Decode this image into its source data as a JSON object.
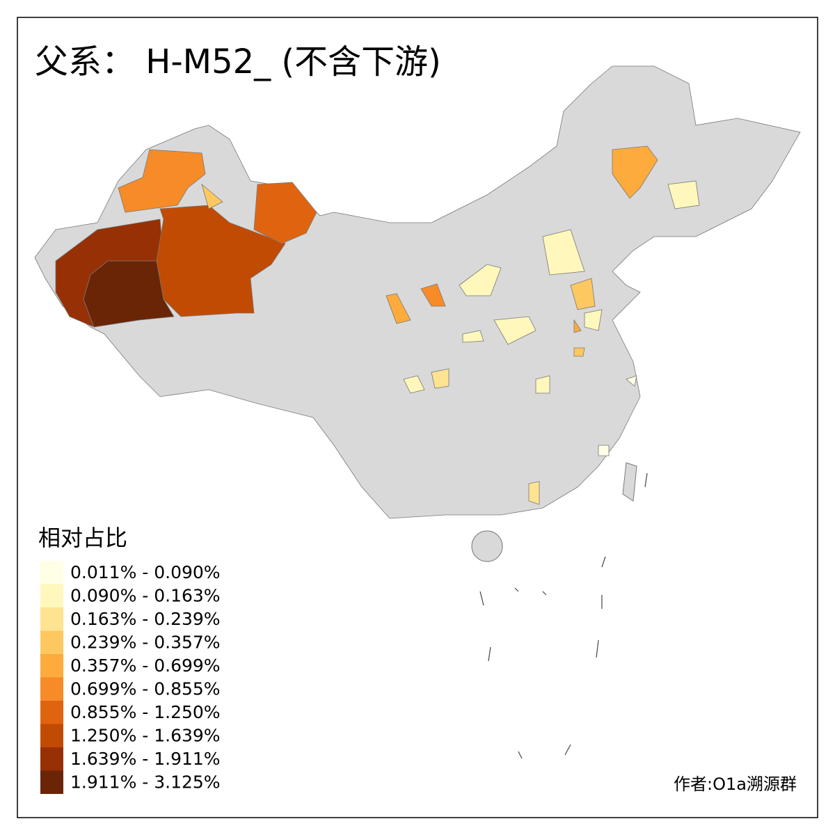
{
  "title": "父系： H-M52_ (不含下游)",
  "legend": {
    "title": "相对占比",
    "items": [
      {
        "label": "0.011% - 0.090%",
        "color": "#ffffe5"
      },
      {
        "label": "0.090% - 0.163%",
        "color": "#fff7bc"
      },
      {
        "label": "0.163% - 0.239%",
        "color": "#fee391"
      },
      {
        "label": "0.239% - 0.357%",
        "color": "#fec861"
      },
      {
        "label": "0.357% - 0.699%",
        "color": "#fcab3c"
      },
      {
        "label": "0.699% - 0.855%",
        "color": "#f78b28"
      },
      {
        "label": "0.855% - 1.250%",
        "color": "#e0640f"
      },
      {
        "label": "1.250% - 1.639%",
        "color": "#c24b03"
      },
      {
        "label": "1.639% - 1.911%",
        "color": "#983005"
      },
      {
        "label": "1.911% - 3.125%",
        "color": "#6a2406"
      }
    ]
  },
  "author": "作者:O1a溯源群"
}
